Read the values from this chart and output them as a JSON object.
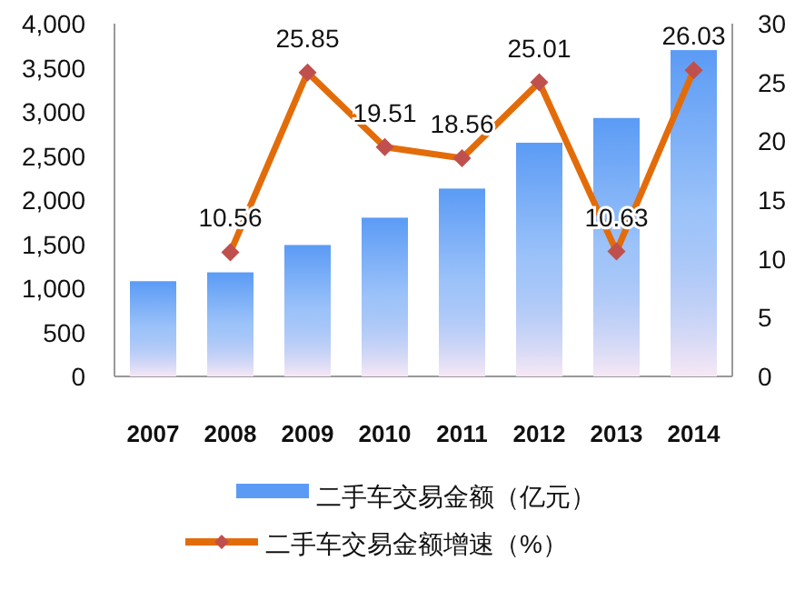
{
  "chart_data": {
    "type": "bar",
    "categories": [
      "2007",
      "2008",
      "2009",
      "2010",
      "2011",
      "2012",
      "2013",
      "2014"
    ],
    "series": [
      {
        "name": "二手车交易金额（亿元）",
        "color": "#5b9bf5",
        "values": [
          1080,
          1180,
          1490,
          1800,
          2130,
          2650,
          2930,
          3700
        ]
      },
      {
        "name": "二手车交易金额增速（%）",
        "type": "line",
        "axis": "y2",
        "color": "#e36c0a",
        "marker": "diamond",
        "values": [
          null,
          10.56,
          25.85,
          19.51,
          18.56,
          25.01,
          10.63,
          26.03
        ],
        "value_labels": [
          null,
          "10.56",
          "25.85",
          "19.51",
          "18.56",
          "25.01",
          "10.63",
          "26.03"
        ]
      }
    ],
    "ylim": [
      0,
      4000
    ],
    "yticks": [
      {
        "value": 0,
        "label": "0"
      },
      {
        "value": 500,
        "label": "500"
      },
      {
        "value": 1000,
        "label": "1,000"
      },
      {
        "value": 1500,
        "label": "1,500"
      },
      {
        "value": 2000,
        "label": "2,000"
      },
      {
        "value": 2500,
        "label": "2,500"
      },
      {
        "value": 3000,
        "label": "3,000"
      },
      {
        "value": 3500,
        "label": "3,500"
      },
      {
        "value": 4000,
        "label": "4,000"
      }
    ],
    "y2lim": [
      0,
      30
    ],
    "y2ticks": [
      0,
      5,
      10,
      15,
      20,
      25,
      30
    ],
    "grid": false,
    "legend": "bottom"
  }
}
